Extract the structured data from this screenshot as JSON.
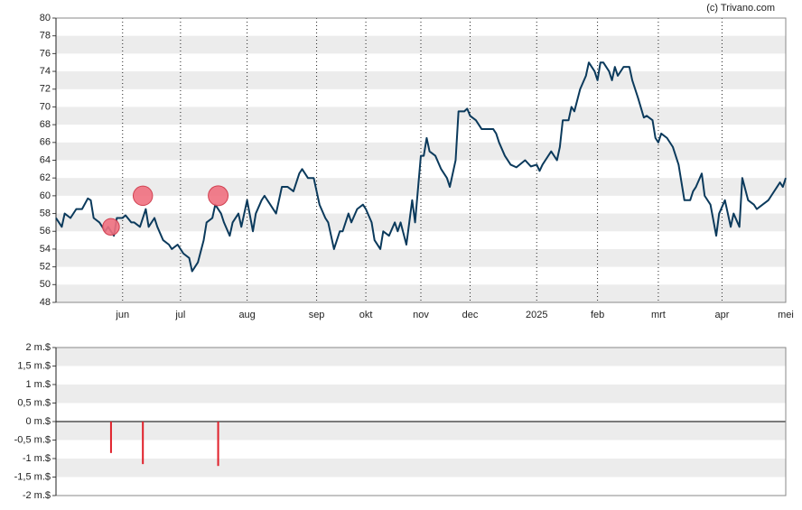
{
  "credit": "(c) Trivano.com",
  "chart_data": [
    {
      "type": "line",
      "color": "#0b3a5c",
      "x": [
        0,
        2,
        3,
        5,
        7,
        9,
        11,
        12,
        13,
        15,
        17,
        18,
        20,
        21,
        23,
        24,
        26,
        27,
        29,
        31,
        32,
        34,
        35,
        37,
        39,
        40,
        42,
        44,
        46,
        47,
        49,
        51,
        52,
        54,
        55,
        57,
        58,
        60,
        61,
        63,
        64,
        66,
        68,
        69,
        71,
        72,
        74,
        76,
        77,
        78,
        80,
        82,
        84,
        85,
        87,
        89,
        91,
        93,
        94,
        96,
        98,
        99,
        101,
        102,
        104,
        106,
        107,
        109,
        110,
        112,
        113,
        115,
        117,
        118,
        119,
        121,
        122,
        123,
        124,
        126,
        127,
        128,
        129,
        131,
        133,
        135,
        136,
        138,
        139,
        141,
        142,
        143,
        145,
        147,
        149,
        151,
        152,
        153,
        155,
        157,
        159,
        162,
        164,
        166,
        167,
        168,
        169,
        171,
        173,
        174,
        175,
        177,
        178,
        179,
        181,
        183,
        184,
        186,
        187,
        188,
        189,
        191,
        192,
        193,
        194,
        196,
        198,
        199,
        201,
        203,
        204,
        206,
        207,
        208,
        209,
        211,
        213,
        215,
        217,
        219,
        220,
        221,
        223,
        224,
        226,
        228,
        229,
        231,
        233,
        234,
        236,
        237,
        239,
        241,
        242,
        244,
        246,
        247,
        249,
        250,
        251,
        252
      ],
      "values": [
        57.5,
        56.5,
        58,
        57.5,
        58.5,
        58.5,
        59.7,
        59.5,
        57.5,
        57,
        56,
        56.5,
        55.5,
        57.5,
        57.5,
        57.8,
        57,
        57,
        56.5,
        58.5,
        56.5,
        57.5,
        56.5,
        55,
        54.5,
        54,
        54.5,
        53.5,
        53,
        51.5,
        52.5,
        55,
        57,
        57.5,
        59,
        58,
        57,
        55.5,
        57,
        58,
        56.5,
        59.5,
        56,
        58,
        59.5,
        60,
        59,
        58,
        59.5,
        61,
        61,
        60.5,
        62.5,
        63,
        62,
        62,
        59,
        57.5,
        57,
        54,
        56,
        56,
        58,
        57,
        58.5,
        59,
        58.5,
        57,
        55,
        54,
        56,
        55.5,
        57,
        56,
        57,
        54.5,
        57,
        59.5,
        57,
        64.5,
        64.5,
        66.5,
        65,
        64.5,
        63,
        62,
        61,
        64,
        69.5,
        69.5,
        69.8,
        69,
        68.5,
        67.5,
        67.5,
        67.5,
        67,
        66,
        64.5,
        63.5,
        63.2,
        64,
        63.3,
        63.5,
        62.8,
        63.5,
        64,
        65,
        64,
        65.5,
        68.5,
        68.5,
        70,
        69.5,
        72,
        73.5,
        75,
        74,
        73,
        75,
        75,
        74,
        73,
        74.5,
        73.5,
        74.5,
        74.5,
        73,
        71,
        68.8,
        69,
        68.5,
        66.5,
        66,
        67,
        66.5,
        65.5,
        63.5,
        59.5,
        59.5,
        60.5,
        61,
        62.5,
        60,
        59,
        55.5,
        58,
        59.5,
        56.5,
        58,
        56.5,
        62,
        59.5,
        59,
        58.5,
        59,
        59.5,
        60,
        61,
        61.5,
        61,
        62
      ],
      "markers": {
        "color": "#f07080",
        "x": [
          19,
          30,
          56
        ],
        "values": [
          56.5,
          60,
          60
        ]
      },
      "xlim": [
        0,
        252
      ],
      "xticks": [
        {
          "value": 23,
          "label": "jun"
        },
        {
          "value": 43,
          "label": "jul"
        },
        {
          "value": 66,
          "label": "aug"
        },
        {
          "value": 90,
          "label": "sep"
        },
        {
          "value": 107,
          "label": "okt"
        },
        {
          "value": 126,
          "label": "nov"
        },
        {
          "value": 143,
          "label": "dec"
        },
        {
          "value": 166,
          "label": "2025"
        },
        {
          "value": 187,
          "label": "feb"
        },
        {
          "value": 208,
          "label": "mrt"
        },
        {
          "value": 230,
          "label": "apr"
        },
        {
          "value": 252,
          "label": "mei"
        }
      ],
      "ylim": [
        48,
        80
      ],
      "yticks": [
        48,
        50,
        52,
        54,
        56,
        58,
        60,
        62,
        64,
        66,
        68,
        70,
        72,
        74,
        76,
        78,
        80
      ]
    },
    {
      "type": "bar",
      "color": "#e0202a",
      "x": [
        19,
        30,
        56
      ],
      "values": [
        -0.85,
        -1.15,
        -1.2
      ],
      "xlim": [
        0,
        252
      ],
      "ylim": [
        -2,
        2
      ],
      "yticks": [
        {
          "value": -2,
          "label": "-2 m.$"
        },
        {
          "value": -1.5,
          "label": "-1,5 m.$"
        },
        {
          "value": -1,
          "label": "-1 m.$"
        },
        {
          "value": -0.5,
          "label": "-0,5 m.$"
        },
        {
          "value": 0,
          "label": "0 m.$"
        },
        {
          "value": 0.5,
          "label": "0,5 m.$"
        },
        {
          "value": 1,
          "label": "1 m.$"
        },
        {
          "value": 1.5,
          "label": "1,5 m.$"
        },
        {
          "value": 2,
          "label": "2 m.$"
        }
      ]
    }
  ]
}
